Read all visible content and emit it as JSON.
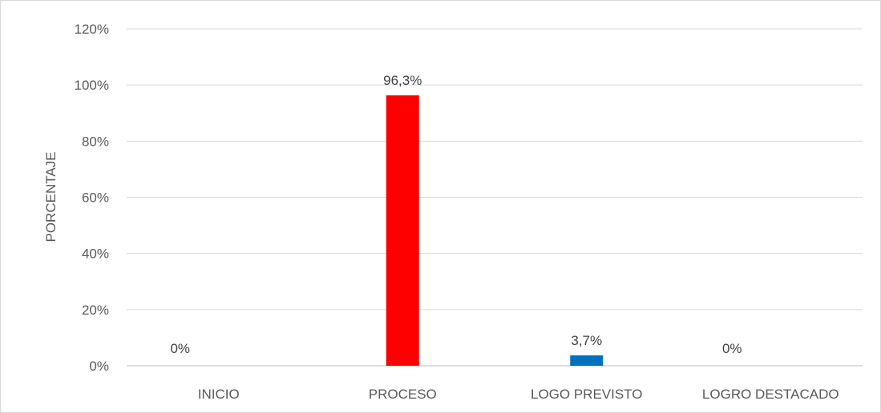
{
  "chart_data": {
    "type": "bar",
    "categories": [
      "INICIO",
      "PROCESO",
      "LOGO PREVISTO",
      "LOGRO DESTACADO"
    ],
    "values": [
      0,
      96.3,
      3.7,
      0
    ],
    "data_labels": [
      "0%",
      "96,3%",
      "3,7%",
      "0%"
    ],
    "bar_colors": [
      "#ff0000",
      "#ff0000",
      "#0070c0",
      "#0070c0"
    ],
    "ylabel": "PORCENTAJE",
    "ylim": [
      0,
      120
    ],
    "y_ticks": [
      0,
      20,
      40,
      60,
      80,
      100,
      120
    ],
    "y_tick_labels": [
      "0%",
      "20%",
      "40%",
      "60%",
      "80%",
      "100%",
      "120%"
    ],
    "grid": true,
    "legend": "none"
  }
}
